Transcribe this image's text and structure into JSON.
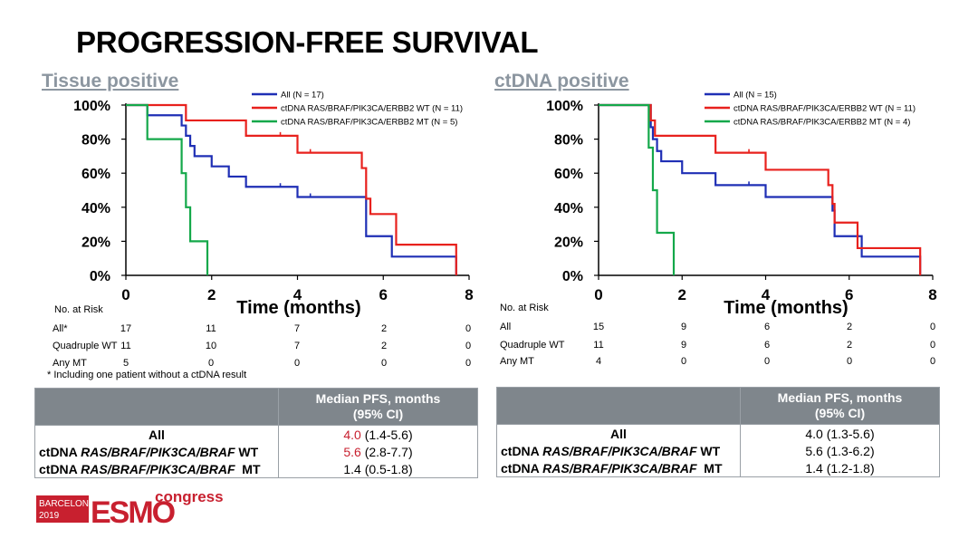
{
  "title": "PROGRESSION-FREE SURVIVAL",
  "colors": {
    "all": "#1f2fb5",
    "wt": "#e8211d",
    "mt": "#14a84a",
    "header_bg": "#7f868c",
    "subtitle": "#8c96a0",
    "logo_red": "#c8202f"
  },
  "chart_data": [
    {
      "type": "line",
      "title": "Tissue positive",
      "xlabel": "Time (months)",
      "ylabel": "",
      "xlim": [
        0,
        8
      ],
      "ylim": [
        0,
        100
      ],
      "x_ticks": [
        "0",
        "2",
        "4",
        "6",
        "8"
      ],
      "y_ticks": [
        "0%",
        "20%",
        "40%",
        "60%",
        "80%",
        "100%"
      ],
      "legend_position": "top-right",
      "series": [
        {
          "name": "All (N = 17)",
          "color_key": "all",
          "steps": [
            [
              0,
              100
            ],
            [
              0.5,
              94
            ],
            [
              1.3,
              88
            ],
            [
              1.4,
              82
            ],
            [
              1.5,
              76
            ],
            [
              1.6,
              70
            ],
            [
              2.0,
              64
            ],
            [
              2.4,
              58
            ],
            [
              2.8,
              52
            ],
            [
              4.0,
              46
            ],
            [
              5.6,
              40
            ],
            [
              5.6,
              23
            ],
            [
              6.2,
              11
            ],
            [
              7.7,
              0
            ]
          ],
          "censor": [
            [
              3.6,
              52
            ],
            [
              4.3,
              46
            ]
          ]
        },
        {
          "name": "ctDNA RAS/BRAF/PIK3CA/ERBB2 WT (N = 11)",
          "color_key": "wt",
          "steps": [
            [
              0,
              100
            ],
            [
              1.4,
              91
            ],
            [
              2.8,
              82
            ],
            [
              4.0,
              72
            ],
            [
              5.5,
              63
            ],
            [
              5.6,
              54
            ],
            [
              5.6,
              45
            ],
            [
              5.7,
              36
            ],
            [
              6.3,
              18
            ],
            [
              7.7,
              0
            ]
          ],
          "censor": [
            [
              3.6,
              82
            ],
            [
              4.3,
              72
            ]
          ]
        },
        {
          "name": "ctDNA RAS/BRAF/PIK3CA/ERBB2 MT (N = 5)",
          "color_key": "mt",
          "steps": [
            [
              0,
              100
            ],
            [
              0.5,
              80
            ],
            [
              1.3,
              60
            ],
            [
              1.4,
              40
            ],
            [
              1.5,
              20
            ],
            [
              1.9,
              0
            ]
          ],
          "censor": []
        }
      ]
    },
    {
      "type": "line",
      "title": "ctDNA positive",
      "xlabel": "Time (months)",
      "ylabel": "",
      "xlim": [
        0,
        8
      ],
      "ylim": [
        0,
        100
      ],
      "x_ticks": [
        "0",
        "2",
        "4",
        "6",
        "8"
      ],
      "y_ticks": [
        "0%",
        "20%",
        "40%",
        "60%",
        "80%",
        "100%"
      ],
      "legend_position": "top-right",
      "series": [
        {
          "name": "All (N = 15)",
          "color_key": "all",
          "steps": [
            [
              0,
              100
            ],
            [
              1.25,
              87
            ],
            [
              1.3,
              80
            ],
            [
              1.4,
              73
            ],
            [
              1.5,
              67
            ],
            [
              2.0,
              60
            ],
            [
              2.8,
              53
            ],
            [
              4.0,
              46
            ],
            [
              5.6,
              38
            ],
            [
              5.65,
              23
            ],
            [
              6.3,
              11
            ],
            [
              7.7,
              0
            ]
          ],
          "censor": [
            [
              3.6,
              53
            ]
          ]
        },
        {
          "name": "ctDNA RAS/BRAF/PIK3CA/ERBB2 WT (N = 11)",
          "color_key": "wt",
          "steps": [
            [
              0,
              100
            ],
            [
              1.25,
              91
            ],
            [
              1.35,
              82
            ],
            [
              2.8,
              72
            ],
            [
              4.0,
              62
            ],
            [
              5.5,
              53
            ],
            [
              5.6,
              42
            ],
            [
              5.65,
              31
            ],
            [
              6.2,
              16
            ],
            [
              7.7,
              0
            ]
          ],
          "censor": [
            [
              3.6,
              72
            ]
          ]
        },
        {
          "name": "ctDNA RAS/BRAF/PIK3CA/ERBB2 MT (N = 4)",
          "color_key": "mt",
          "steps": [
            [
              0,
              100
            ],
            [
              1.2,
              75
            ],
            [
              1.3,
              50
            ],
            [
              1.4,
              25
            ],
            [
              1.8,
              0
            ]
          ],
          "censor": []
        }
      ]
    }
  ],
  "risk_tables": [
    {
      "header": "No. at Risk",
      "rows": [
        {
          "label": "All*",
          "values": [
            "17",
            "11",
            "7",
            "2",
            "0"
          ]
        },
        {
          "label": "Quadruple WT",
          "values": [
            "11",
            "10",
            "7",
            "2",
            "0"
          ]
        },
        {
          "label": "Any MT",
          "values": [
            "5",
            "0",
            "0",
            "0",
            "0"
          ]
        }
      ]
    },
    {
      "header": "No. at Risk",
      "rows": [
        {
          "label": "All",
          "values": [
            "15",
            "9",
            "6",
            "2",
            "0"
          ]
        },
        {
          "label": "Quadruple WT",
          "values": [
            "11",
            "9",
            "6",
            "2",
            "0"
          ]
        },
        {
          "label": "Any MT",
          "values": [
            "4",
            "0",
            "0",
            "0",
            "0"
          ]
        }
      ]
    }
  ],
  "footnote": "* Including one patient without a ctDNA result",
  "summary_tables": [
    {
      "header_line1": "Median PFS, months",
      "header_line2": "(95% CI)",
      "rows": [
        {
          "label_pre": "All",
          "label_it": "",
          "label_post": "",
          "median": "4.0",
          "ci": "(1.4-5.6)",
          "red": true
        },
        {
          "label_pre": "ctDNA ",
          "label_it": "RAS/BRAF/PIK3CA/BRAF",
          "label_post": " WT",
          "median": "5.6",
          "ci": "(2.8-7.7)",
          "red": true
        },
        {
          "label_pre": "ctDNA ",
          "label_it": "RAS/BRAF/PIK3CA/BRAF",
          "label_post": "  MT",
          "median": "1.4",
          "ci": "(0.5-1.8)",
          "red": false
        }
      ]
    },
    {
      "header_line1": "Median PFS, months",
      "header_line2": "(95% CI)",
      "rows": [
        {
          "label_pre": "All",
          "label_it": "",
          "label_post": "",
          "median": "4.0",
          "ci": "(1.3-5.6)",
          "red": false
        },
        {
          "label_pre": "ctDNA ",
          "label_it": "RAS/BRAF/PIK3CA/BRAF",
          "label_post": " WT",
          "median": "5.6",
          "ci": "(1.3-6.2)",
          "red": false
        },
        {
          "label_pre": "ctDNA ",
          "label_it": "RAS/BRAF/PIK3CA/BRAF",
          "label_post": "  MT",
          "median": "1.4",
          "ci": "(1.2-1.8)",
          "red": false
        }
      ]
    }
  ],
  "logo": {
    "city": "BARCELONA",
    "year": "2019",
    "brand": "ESMO",
    "word": "congress"
  }
}
